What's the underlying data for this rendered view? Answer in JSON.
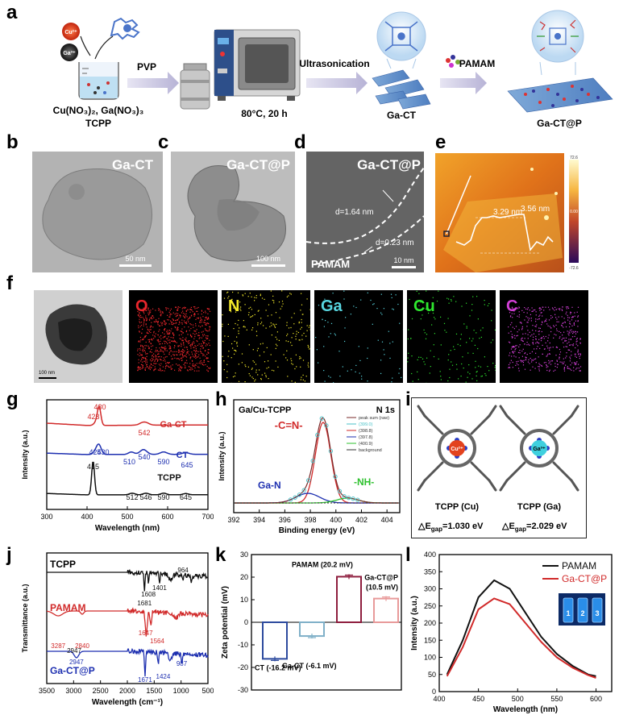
{
  "panels": [
    "a",
    "b",
    "c",
    "d",
    "e",
    "f",
    "g",
    "h",
    "i",
    "j",
    "k",
    "l"
  ],
  "a": {
    "cu_ion": "Cu²⁺",
    "ga_ion": "Ga³⁺",
    "reagents": "Cu(NO₃)₂, Ga(NO₃)₃",
    "tcpp": "TCPP",
    "pvp": "PVP",
    "condition": "80°C, 20 h",
    "ultrasonication": "Ultrasonication",
    "pamam": "PAMAM",
    "ga_ct": "Ga-CT",
    "ga_ctp": "Ga-CT@P"
  },
  "b": {
    "title": "Ga-CT",
    "scale": "50 nm"
  },
  "c": {
    "title": "Ga-CT@P",
    "scale": "100 nm"
  },
  "d": {
    "title": "Ga-CT@P",
    "d1": "d=1.64 nm",
    "d2": "d=0.23 nm",
    "pamam": "PAMAM",
    "scale": "10 nm"
  },
  "e": {
    "h1": "3.29 nm",
    "h2": "3.56 nm",
    "bar_top": "72.6",
    "bar_mid": "0.00",
    "bar_bottom": "-72.6"
  },
  "f": {
    "scale": "100 nm",
    "elements": [
      {
        "name": "O",
        "color": "#e8262c"
      },
      {
        "name": "N",
        "color": "#f4ea2a"
      },
      {
        "name": "Ga",
        "color": "#58d6e0"
      },
      {
        "name": "Cu",
        "color": "#2ee82e"
      },
      {
        "name": "C",
        "color": "#d23fd6"
      }
    ]
  },
  "chart_data": [
    {
      "panel": "g",
      "type": "line",
      "xlabel": "Wavelength (nm)",
      "ylabel": "Intensity (a.u.)",
      "xlim": [
        300,
        700
      ],
      "xticks": [
        "300",
        "400",
        "500",
        "600",
        "700"
      ],
      "series": [
        {
          "name": "Ga-CT",
          "color": "#d12a2a",
          "peaks": [
            "423",
            "430",
            "542"
          ]
        },
        {
          "name": "CT",
          "color": "#1d2fb0",
          "peaks": [
            "425",
            "430",
            "510",
            "540",
            "590",
            "645"
          ]
        },
        {
          "name": "TCPP",
          "color": "#111111",
          "peaks": [
            "415",
            "512",
            "546",
            "590",
            "645"
          ]
        }
      ]
    },
    {
      "panel": "h",
      "type": "line",
      "title": "Ga/Cu-TCPP",
      "subtitle": "N 1s",
      "xlabel": "Binding energy (eV)",
      "ylabel": "Intensity (a.u.)",
      "xlim": [
        392,
        405
      ],
      "xticks": [
        "392",
        "394",
        "396",
        "398",
        "400",
        "402",
        "404"
      ],
      "annotations": [
        "-C=N-",
        "Ga-N",
        "-NH-"
      ],
      "legend": [
        "peak sum (raw)",
        "(399.0)",
        "(398.8)",
        "(397.8)",
        "(400.9)",
        "background"
      ]
    },
    {
      "panel": "j",
      "type": "line",
      "xlabel": "Wavelength (cm⁻¹)",
      "ylabel": "Transmittance (a.u.)",
      "xlim": [
        3500,
        500
      ],
      "xticks": [
        "3500",
        "3000",
        "2500",
        "2000",
        "1500",
        "1000",
        "500"
      ],
      "series": [
        {
          "name": "TCPP",
          "color": "#111111",
          "peaks": [
            "1681",
            "1608",
            "1401",
            "964"
          ]
        },
        {
          "name": "PAMAM",
          "color": "#d12a2a",
          "peaks": [
            "3287",
            "2840",
            "1647",
            "1564"
          ]
        },
        {
          "name": "Ga-CT@P",
          "color": "#1d2fb0",
          "peaks": [
            "2947",
            "2947",
            "1671",
            "1424",
            "987"
          ]
        }
      ]
    },
    {
      "panel": "k",
      "type": "bar",
      "ylabel": "Zeta potential (mV)",
      "ylim": [
        -30,
        30
      ],
      "yticks": [
        "-30",
        "-20",
        "-10",
        "0",
        "10",
        "20",
        "30"
      ],
      "categories": [
        "CT",
        "Ga-CT",
        "PAMAM",
        "Ga-CT@P"
      ],
      "values": [
        -16.2,
        -6.1,
        20.2,
        10.5
      ],
      "labels": [
        "CT (-16.2 mV)",
        "Ga-CT (-6.1 mV)",
        "PAMAM (20.2 mV)",
        "Ga-CT@P (10.5 mV)"
      ],
      "colors": [
        "#2d4a9e",
        "#7fb0c8",
        "#8e1e3e",
        "#e89a9a"
      ]
    },
    {
      "panel": "l",
      "type": "line",
      "xlabel": "Wavelength (nm)",
      "ylabel": "Intensity (a.u.)",
      "xlim": [
        400,
        620
      ],
      "ylim": [
        0,
        400
      ],
      "xticks": [
        "400",
        "450",
        "500",
        "550",
        "600"
      ],
      "yticks": [
        "0",
        "50",
        "100",
        "150",
        "200",
        "250",
        "300",
        "350",
        "400"
      ],
      "series": [
        {
          "name": "PAMAM",
          "color": "#111111",
          "x": [
            410,
            430,
            450,
            470,
            490,
            510,
            530,
            550,
            570,
            590,
            600
          ],
          "y": [
            50,
            150,
            275,
            325,
            300,
            230,
            160,
            110,
            75,
            50,
            45
          ]
        },
        {
          "name": "Ga-CT@P",
          "color": "#d12a2a",
          "x": [
            410,
            430,
            450,
            470,
            490,
            510,
            530,
            550,
            570,
            590,
            600
          ],
          "y": [
            45,
            130,
            240,
            272,
            255,
            200,
            145,
            100,
            70,
            48,
            40
          ]
        }
      ],
      "vials": [
        "1",
        "2",
        "3"
      ]
    }
  ],
  "i": {
    "left_title": "TCPP (Cu)",
    "right_title": "TCPP (Ga)",
    "left_ion": "Cu²⁺",
    "right_ion": "Ga³⁺",
    "left_gap": "△E",
    "gap_sub": "gap",
    "left_gap_value": "=1.030 eV",
    "right_gap_value": "=2.029 eV"
  }
}
